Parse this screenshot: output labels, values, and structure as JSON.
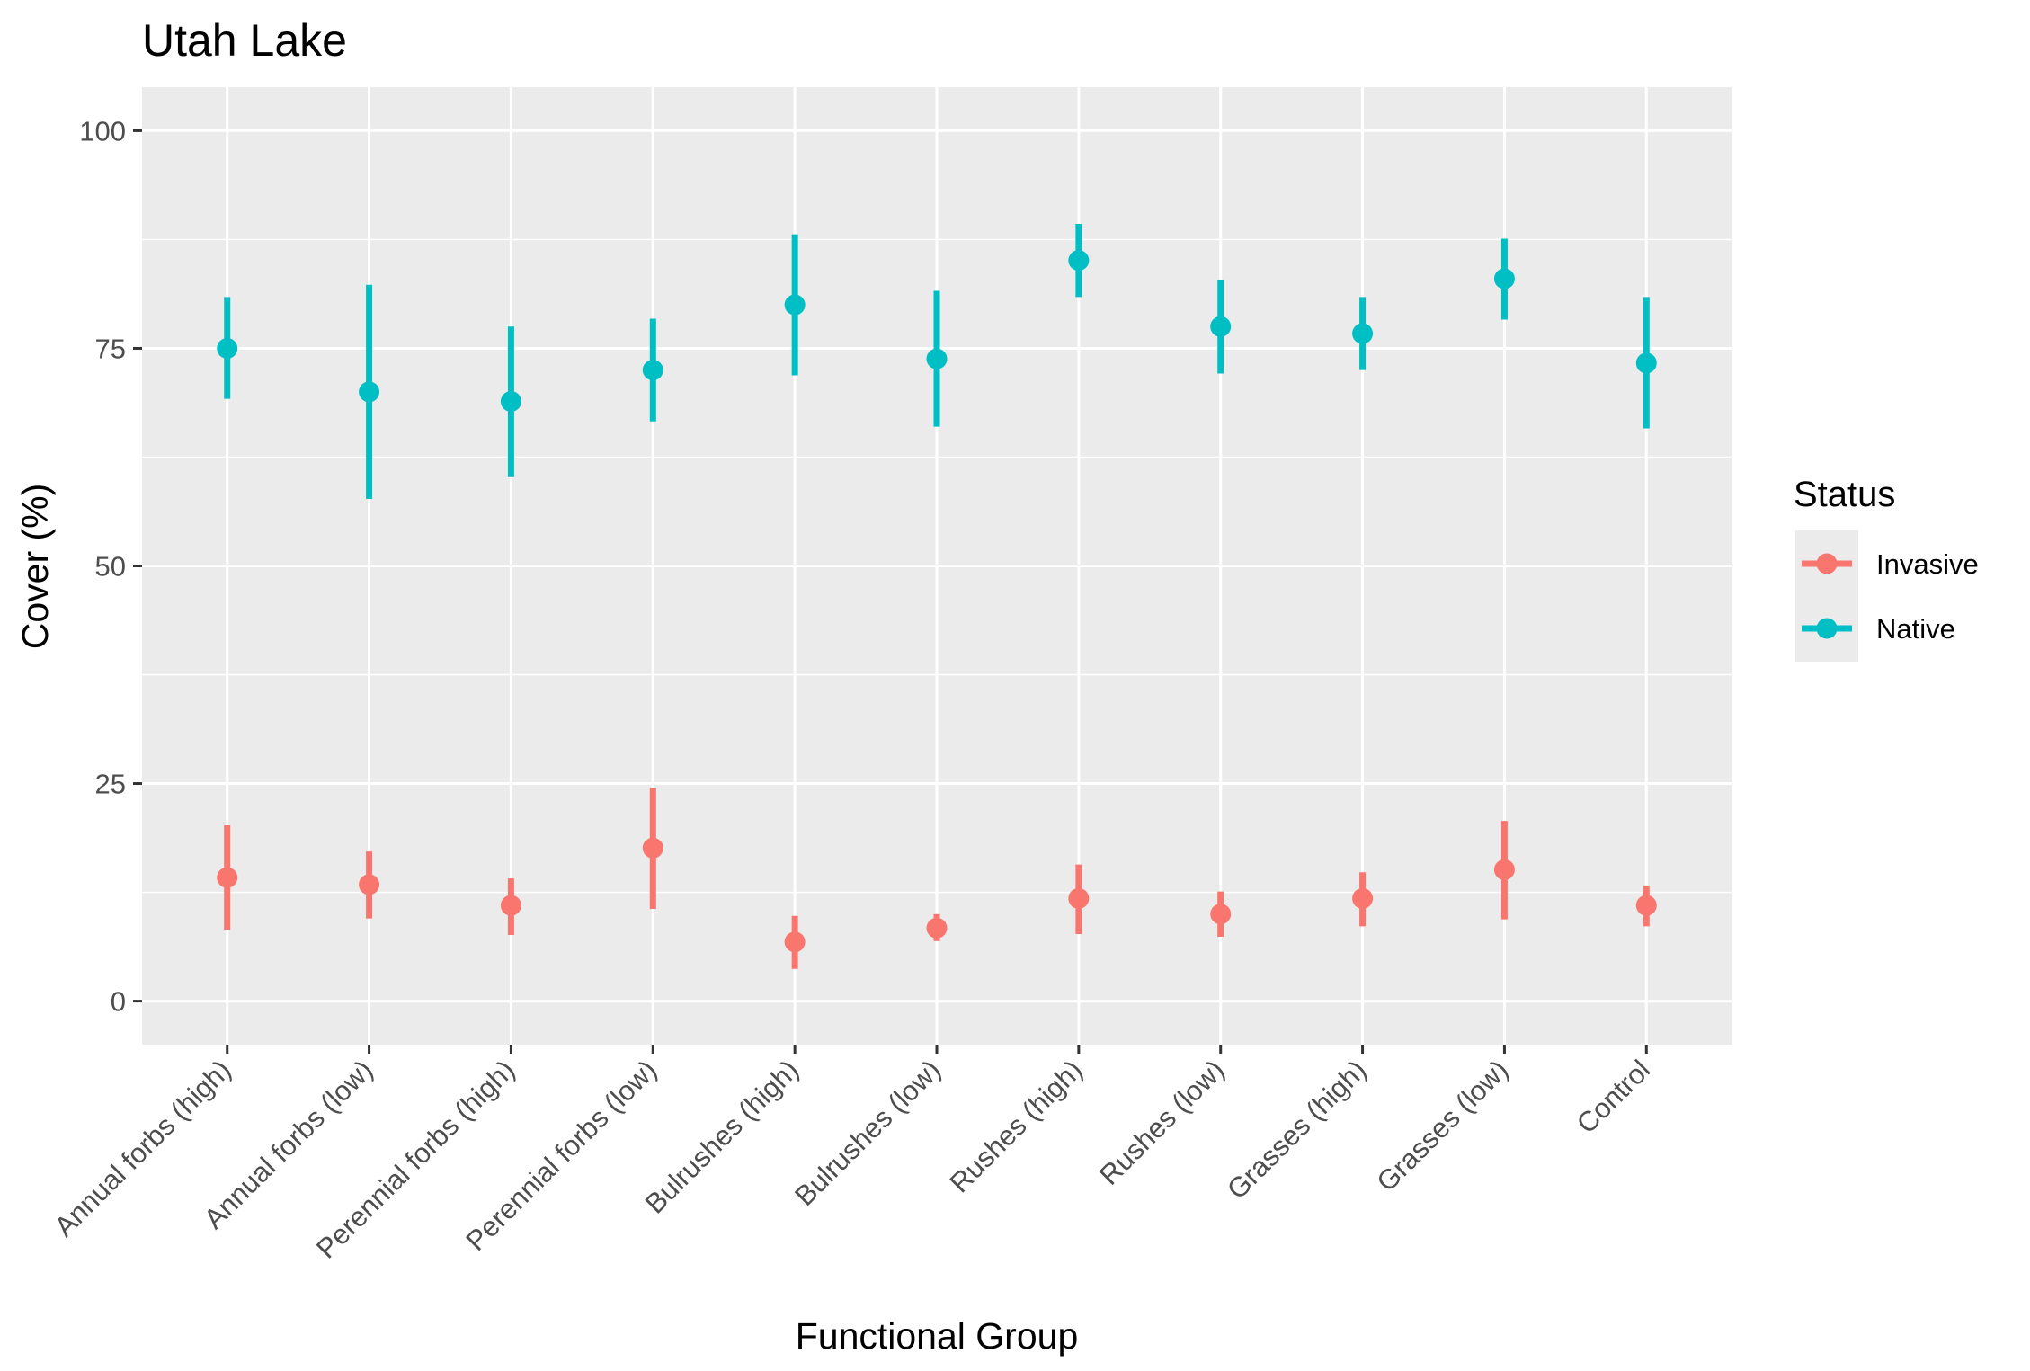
{
  "chart_data": {
    "type": "pointrange",
    "title": "Utah Lake",
    "xlabel": "Functional Group",
    "ylabel": "Cover (%)",
    "ylim": [
      -5,
      105
    ],
    "yticks": [
      0,
      25,
      50,
      75,
      100
    ],
    "grid": true,
    "legend": {
      "title": "Status",
      "placement": "right"
    },
    "categories": [
      "Annual forbs (high)",
      "Annual forbs (low)",
      "Perennial forbs (high)",
      "Perennial forbs (low)",
      "Bulrushes (high)",
      "Bulrushes (low)",
      "Rushes (high)",
      "Rushes (low)",
      "Grasses (high)",
      "Grasses (low)",
      "Control"
    ],
    "series": [
      {
        "name": "Invasive",
        "color": "#F8766D",
        "values": [
          14.2,
          13.4,
          11.0,
          17.6,
          6.8,
          8.4,
          11.8,
          10.0,
          11.8,
          15.1,
          11.0
        ],
        "lower": [
          8.2,
          9.5,
          7.6,
          10.6,
          3.7,
          6.9,
          7.7,
          7.4,
          8.6,
          9.4,
          8.6
        ],
        "upper": [
          20.2,
          17.2,
          14.1,
          24.5,
          9.8,
          10.0,
          15.7,
          12.6,
          14.8,
          20.7,
          13.3
        ]
      },
      {
        "name": "Native",
        "color": "#00BFC4",
        "values": [
          75.0,
          70.0,
          68.9,
          72.5,
          80.0,
          73.8,
          85.1,
          77.5,
          76.7,
          83.0,
          73.3
        ],
        "lower": [
          69.2,
          57.7,
          60.2,
          66.6,
          71.9,
          66.0,
          80.9,
          72.1,
          72.5,
          78.3,
          65.8
        ],
        "upper": [
          80.9,
          82.3,
          77.5,
          78.4,
          88.1,
          81.6,
          89.3,
          82.8,
          80.9,
          87.6,
          80.9
        ]
      }
    ]
  }
}
